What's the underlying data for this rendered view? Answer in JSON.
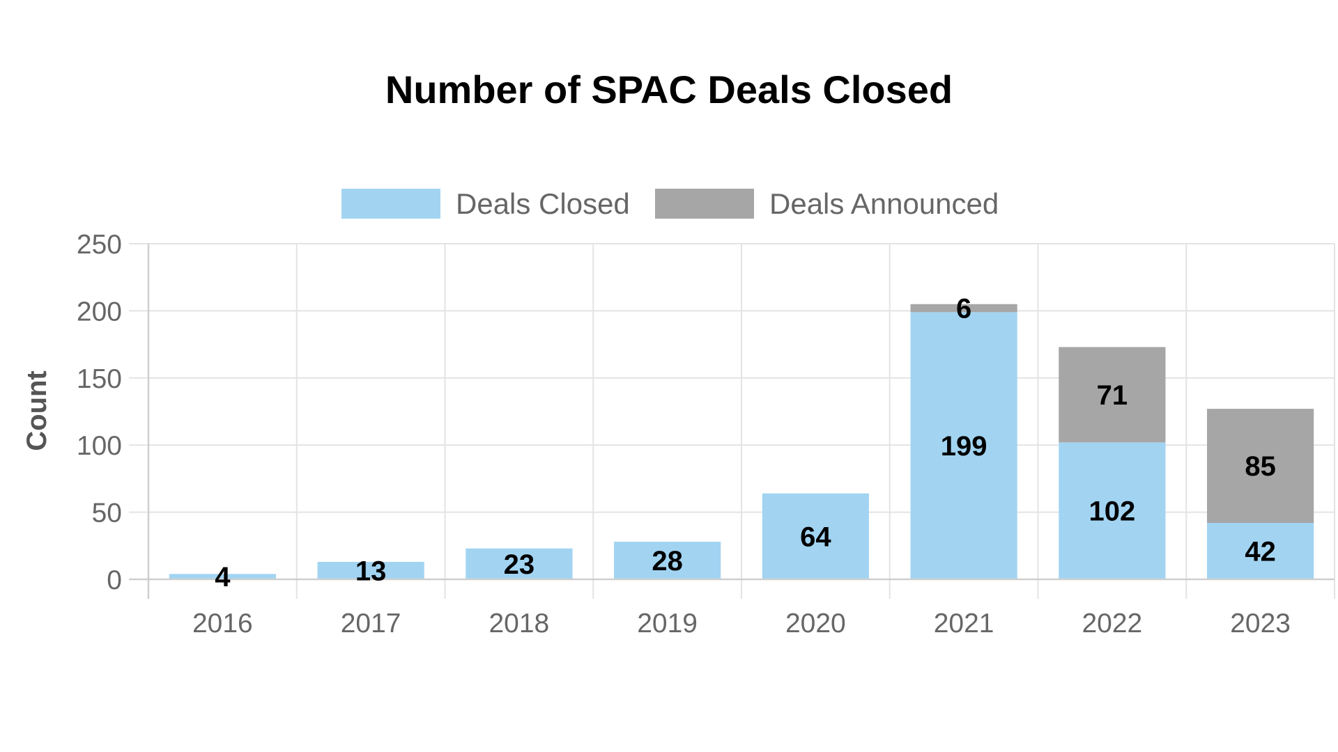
{
  "chart_data": {
    "type": "bar",
    "stacked": true,
    "title": "Number of SPAC Deals Closed",
    "xlabel": "",
    "ylabel": "Count",
    "categories": [
      "2016",
      "2017",
      "2018",
      "2019",
      "2020",
      "2021",
      "2022",
      "2023"
    ],
    "series": [
      {
        "name": "Deals Closed",
        "color": "#a2d4f2",
        "values": [
          4,
          13,
          23,
          28,
          64,
          199,
          102,
          42
        ]
      },
      {
        "name": "Deals Announced",
        "color": "#a6a6a6",
        "values": [
          0,
          0,
          0,
          0,
          0,
          6,
          71,
          85
        ]
      }
    ],
    "ylim": [
      0,
      250
    ],
    "yticks": [
      0,
      50,
      100,
      150,
      200,
      250
    ],
    "grid": true,
    "legend": "top",
    "data_labels": true
  }
}
